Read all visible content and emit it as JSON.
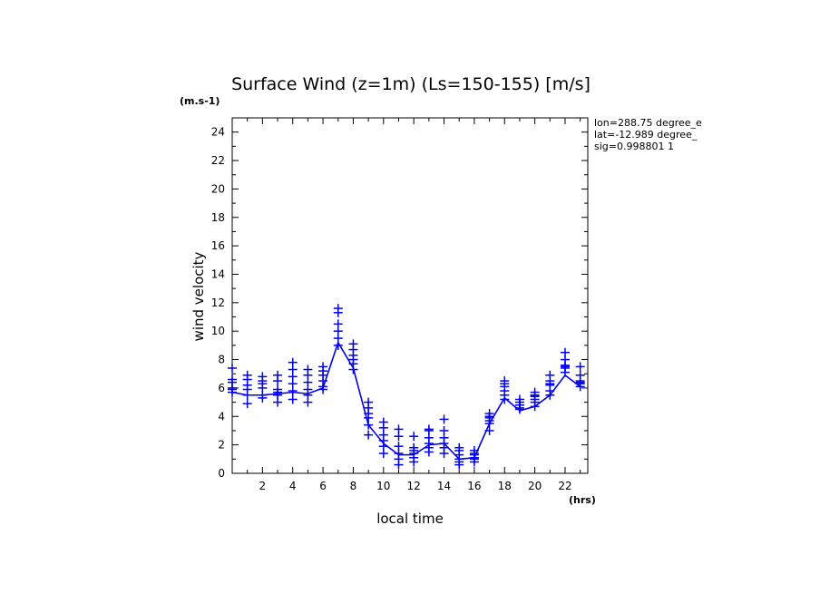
{
  "chart_data": {
    "type": "line",
    "title": "Surface Wind (z=1m) (Ls=150-155) [m/s]",
    "y_unit": "(m.s-1)",
    "x_unit": "(hrs)",
    "xlabel": "local time",
    "ylabel": "wind velocity",
    "xlim": [
      0,
      23.5
    ],
    "ylim": [
      0,
      25
    ],
    "x_ticks": [
      2,
      4,
      6,
      8,
      10,
      12,
      14,
      16,
      18,
      20,
      22
    ],
    "y_ticks": [
      0,
      2,
      4,
      6,
      8,
      10,
      12,
      14,
      16,
      18,
      20,
      22,
      24
    ],
    "grid": false,
    "info": [
      "lon=288.75 degree_e",
      "lat=-12.989 degree_",
      "sig=0.998801 1"
    ],
    "colors": {
      "series": "#0000ee",
      "axis": "#000000"
    },
    "series": [
      {
        "style": "line",
        "x": [
          0,
          1,
          2,
          3,
          4,
          5,
          6,
          7,
          8,
          9,
          10,
          11,
          12,
          13,
          14,
          15,
          16,
          17,
          18,
          19,
          20,
          21,
          22,
          23
        ],
        "y": [
          5.7,
          5.5,
          5.5,
          5.6,
          5.7,
          5.6,
          6.0,
          9.2,
          7.4,
          3.4,
          2.1,
          1.3,
          1.3,
          2.0,
          2.1,
          1.0,
          1.1,
          3.5,
          5.3,
          4.4,
          4.7,
          5.5,
          6.9,
          6.1
        ]
      },
      {
        "style": "markers",
        "x": [
          0,
          0,
          0,
          0,
          0,
          0,
          1,
          1,
          1,
          1,
          1,
          1,
          2,
          2,
          2,
          2,
          2,
          2,
          3,
          3,
          3,
          3,
          3,
          3,
          4,
          4,
          4,
          4,
          4,
          4,
          5,
          5,
          5,
          5,
          5,
          5,
          6,
          6,
          6,
          6,
          6,
          6,
          7,
          7,
          7,
          7,
          7,
          7,
          8,
          8,
          8,
          8,
          8,
          8,
          9,
          9,
          9,
          9,
          9,
          9,
          10,
          10,
          10,
          10,
          10,
          10,
          11,
          11,
          11,
          11,
          11,
          11,
          12,
          12,
          12,
          12,
          12,
          12,
          13,
          13,
          13,
          13,
          13,
          13,
          14,
          14,
          14,
          14,
          14,
          14,
          15,
          15,
          15,
          15,
          15,
          15,
          16,
          16,
          16,
          16,
          16,
          16,
          17,
          17,
          17,
          17,
          17,
          17,
          18,
          18,
          18,
          18,
          18,
          18,
          19,
          19,
          19,
          19,
          19,
          19,
          20,
          20,
          20,
          20,
          20,
          20,
          21,
          21,
          21,
          21,
          21,
          21,
          22,
          22,
          22,
          22,
          22,
          22,
          23,
          23,
          23,
          23,
          23,
          23
        ],
        "y": [
          5.7,
          6.0,
          6.4,
          6.6,
          7.4,
          5.9,
          4.9,
          5.5,
          5.9,
          6.2,
          6.6,
          6.9,
          5.3,
          5.5,
          6.0,
          6.3,
          6.5,
          6.8,
          5.0,
          5.5,
          5.7,
          5.9,
          6.5,
          6.9,
          5.2,
          5.8,
          6.3,
          6.8,
          7.3,
          7.8,
          5.0,
          5.5,
          5.9,
          6.4,
          6.9,
          7.3,
          5.9,
          6.1,
          6.5,
          6.9,
          7.2,
          7.5,
          9.0,
          9.5,
          10.0,
          10.5,
          11.3,
          11.6,
          7.3,
          7.7,
          8.0,
          8.3,
          8.7,
          9.1,
          2.7,
          3.4,
          3.9,
          4.2,
          4.6,
          5.0,
          1.4,
          1.9,
          2.3,
          2.7,
          3.2,
          3.6,
          0.6,
          1.0,
          1.4,
          1.9,
          2.6,
          3.1,
          0.8,
          1.1,
          1.4,
          1.6,
          1.8,
          2.6,
          1.5,
          1.8,
          2.1,
          2.5,
          3.0,
          3.1,
          1.4,
          1.8,
          2.1,
          2.5,
          3.0,
          3.8,
          0.6,
          0.8,
          1.0,
          1.3,
          1.6,
          1.8,
          0.8,
          1.0,
          1.1,
          1.3,
          1.4,
          1.6,
          3.0,
          3.5,
          3.7,
          4.0,
          4.2,
          3.9,
          5.2,
          5.5,
          5.8,
          6.1,
          6.5,
          6.3,
          4.5,
          4.6,
          4.8,
          5.0,
          5.2,
          4.8,
          4.7,
          5.0,
          5.2,
          5.5,
          5.7,
          5.4,
          5.5,
          5.8,
          6.2,
          6.5,
          6.9,
          6.3,
          7.1,
          7.5,
          7.6,
          8.0,
          8.5,
          7.4,
          6.1,
          6.3,
          6.5,
          6.9,
          7.5,
          6.4
        ]
      }
    ]
  }
}
